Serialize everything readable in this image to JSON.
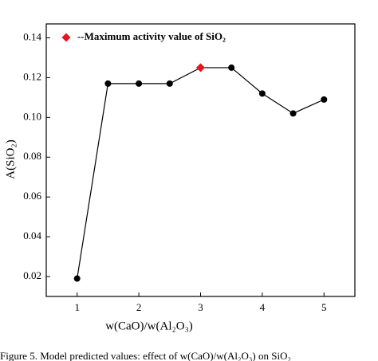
{
  "chart_data": {
    "type": "line",
    "x": [
      1,
      1.5,
      2,
      2.5,
      3,
      3.5,
      4,
      4.5,
      5
    ],
    "series": [
      {
        "name": "A(SiO₂)",
        "color": "#000000",
        "values": [
          0.019,
          0.117,
          0.117,
          0.117,
          0.125,
          0.125,
          0.112,
          0.102,
          0.109
        ]
      }
    ],
    "highlight": {
      "name": "--Maximum activity value of SiO₂",
      "color": "#e8141b",
      "index": 4
    },
    "xlabel": "w(CaO)/w(Al₂O₃)",
    "ylabel": "A(SiO₂)",
    "caption": "Figure 5. Model predicted values: effect of w(CaO)/w(Al₂O₃) on SiO₂",
    "xlim": [
      0.5,
      5.5
    ],
    "xticks": [
      1,
      2,
      3,
      4,
      5
    ],
    "ylim": [
      0.01,
      0.147
    ],
    "yticks": [
      {
        "value": 0.02,
        "label": "0.02"
      },
      {
        "value": 0.04,
        "label": "0.04"
      },
      {
        "value": 0.06,
        "label": "0.06"
      },
      {
        "value": 0.08,
        "label": "0.08"
      },
      {
        "value": 0.1,
        "label": "0.10"
      },
      {
        "value": 0.12,
        "label": "0.12"
      },
      {
        "value": 0.14,
        "label": "0.14"
      }
    ],
    "legend": "upper left"
  }
}
